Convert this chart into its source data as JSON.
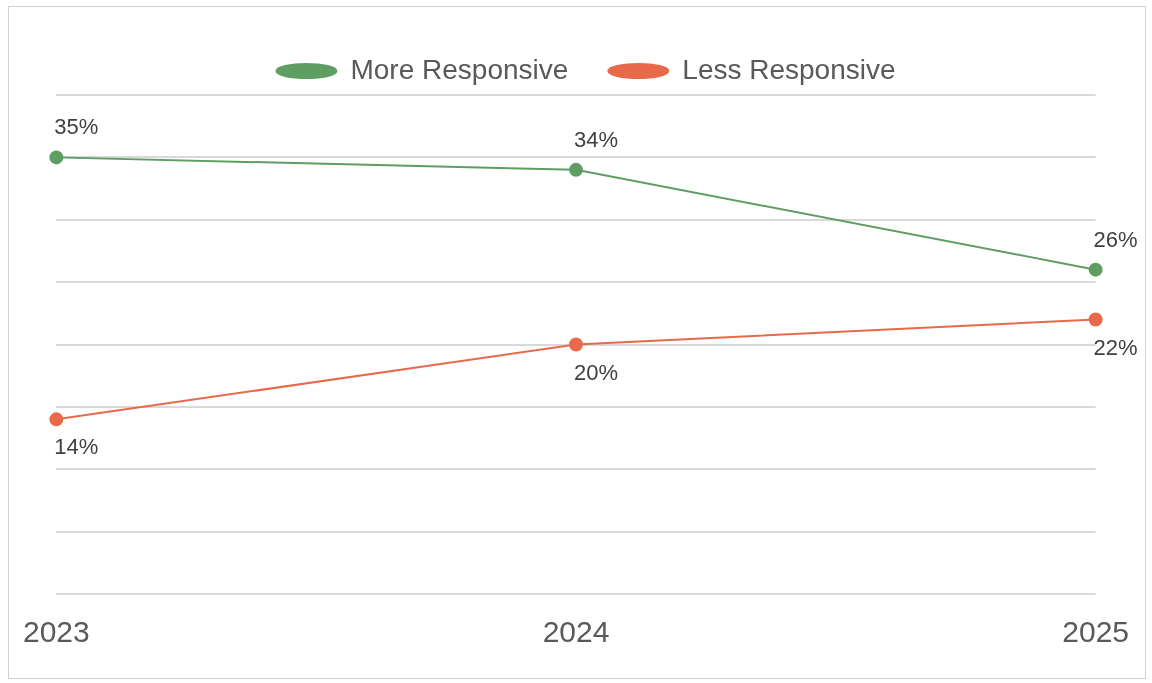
{
  "chart_data": {
    "type": "line",
    "categories": [
      "2023",
      "2024",
      "2025"
    ],
    "series": [
      {
        "name": "More Responsive",
        "color": "#5f9e62",
        "values": [
          35,
          34,
          26
        ],
        "value_labels": [
          "35%",
          "34%",
          "26%"
        ]
      },
      {
        "name": "Less Responsive",
        "color": "#e86a4a",
        "values": [
          14,
          20,
          22
        ],
        "value_labels": [
          "14%",
          "20%",
          "22%"
        ]
      }
    ],
    "ylim": [
      0,
      40
    ],
    "yticks": [
      0,
      5,
      10,
      15,
      20,
      25,
      30,
      35,
      40
    ],
    "tick_labels": "x",
    "grid": "y",
    "legend": "top",
    "marker": "circle",
    "line_style": "solid"
  }
}
